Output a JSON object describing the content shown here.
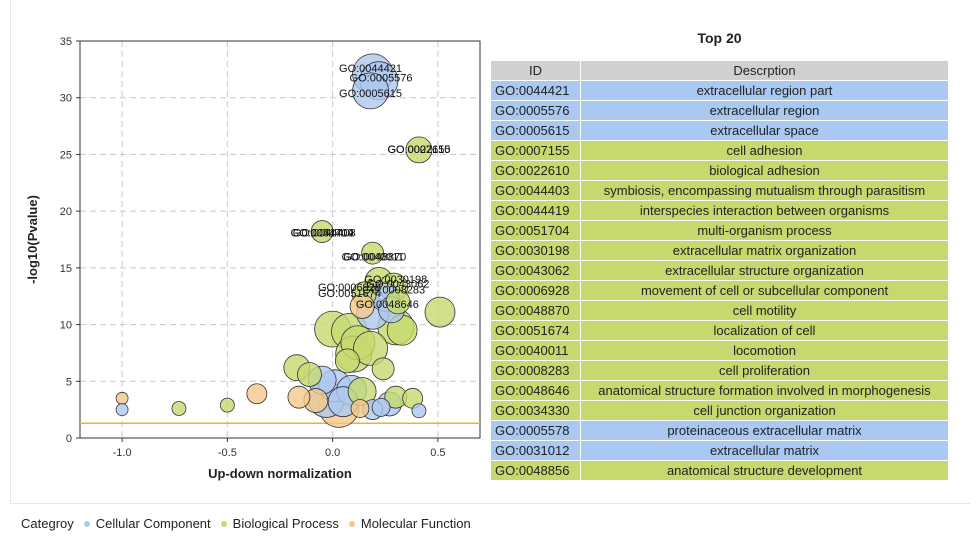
{
  "chart_data": {
    "type": "scatter",
    "xlabel": "Up-down normalization",
    "ylabel": "-log10(Pvalue)",
    "xlim": [
      -1.2,
      0.7
    ],
    "ylim": [
      0,
      35
    ],
    "xticks": [
      -1.0,
      -0.5,
      0.0,
      0.5
    ],
    "xtick_labels": [
      "-1.0",
      "-0.5",
      "0.0",
      "0.5"
    ],
    "yticks": [
      0,
      5,
      10,
      15,
      20,
      25,
      30,
      35
    ],
    "ytick_labels": [
      "0",
      "5",
      "10",
      "15",
      "20",
      "25",
      "30",
      "35"
    ],
    "grid": true,
    "threshold_line_y": 1.3,
    "threshold_color": "#f0b030",
    "category_colors": {
      "Cellular Component": "#aec8ef",
      "Biological Process": "#c6d96e",
      "Molecular Function": "#f3c98a"
    },
    "points": [
      {
        "x": 0.19,
        "y": 32.1,
        "r": 20,
        "cat": "Cellular Component"
      },
      {
        "x": 0.22,
        "y": 31.5,
        "r": 19,
        "cat": "Cellular Component"
      },
      {
        "x": 0.18,
        "y": 30.6,
        "r": 18,
        "cat": "Cellular Component"
      },
      {
        "x": 0.41,
        "y": 25.4,
        "r": 13,
        "cat": "Biological Process"
      },
      {
        "x": -0.05,
        "y": 18.2,
        "r": 11,
        "cat": "Biological Process"
      },
      {
        "x": 0.19,
        "y": 16.3,
        "r": 11,
        "cat": "Biological Process"
      },
      {
        "x": 0.22,
        "y": 13.8,
        "r": 14,
        "cat": "Biological Process"
      },
      {
        "x": 0.29,
        "y": 13.3,
        "r": 14,
        "cat": "Biological Process"
      },
      {
        "x": 0.15,
        "y": 12.7,
        "r": 12,
        "cat": "Biological Process"
      },
      {
        "x": 0.25,
        "y": 12.4,
        "r": 14,
        "cat": "Cellular Component"
      },
      {
        "x": 0.31,
        "y": 12.0,
        "r": 12,
        "cat": "Biological Process"
      },
      {
        "x": 0.14,
        "y": 11.6,
        "r": 12,
        "cat": "Molecular Function"
      },
      {
        "x": 0.28,
        "y": 11.3,
        "r": 13,
        "cat": "Cellular Component"
      },
      {
        "x": 0.19,
        "y": 11.0,
        "r": 16,
        "cat": "Cellular Component"
      },
      {
        "x": 0.51,
        "y": 11.1,
        "r": 15,
        "cat": "Biological Process"
      },
      {
        "x": 0.0,
        "y": 9.6,
        "r": 18,
        "cat": "Biological Process"
      },
      {
        "x": 0.08,
        "y": 9.4,
        "r": 18,
        "cat": "Biological Process"
      },
      {
        "x": 0.3,
        "y": 9.8,
        "r": 18,
        "cat": "Biological Process"
      },
      {
        "x": 0.33,
        "y": 9.5,
        "r": 15,
        "cat": "Biological Process"
      },
      {
        "x": 0.12,
        "y": 8.4,
        "r": 17,
        "cat": "Biological Process"
      },
      {
        "x": 0.18,
        "y": 7.9,
        "r": 17,
        "cat": "Biological Process"
      },
      {
        "x": 0.1,
        "y": 7.4,
        "r": 18,
        "cat": "Biological Process"
      },
      {
        "x": 0.07,
        "y": 6.8,
        "r": 12,
        "cat": "Biological Process"
      },
      {
        "x": 0.24,
        "y": 6.1,
        "r": 11,
        "cat": "Biological Process"
      },
      {
        "x": -0.17,
        "y": 6.2,
        "r": 13,
        "cat": "Biological Process"
      },
      {
        "x": -0.11,
        "y": 5.6,
        "r": 12,
        "cat": "Biological Process"
      },
      {
        "x": -0.05,
        "y": 5.1,
        "r": 14,
        "cat": "Cellular Component"
      },
      {
        "x": 0.01,
        "y": 4.6,
        "r": 16,
        "cat": "Cellular Component"
      },
      {
        "x": 0.09,
        "y": 4.2,
        "r": 15,
        "cat": "Cellular Component"
      },
      {
        "x": 0.14,
        "y": 4.1,
        "r": 14,
        "cat": "Biological Process"
      },
      {
        "x": -0.03,
        "y": 3.4,
        "r": 18,
        "cat": "Cellular Component"
      },
      {
        "x": 0.05,
        "y": 3.2,
        "r": 15,
        "cat": "Cellular Component"
      },
      {
        "x": 0.27,
        "y": 3.0,
        "r": 12,
        "cat": "Cellular Component"
      },
      {
        "x": 0.3,
        "y": 3.6,
        "r": 11,
        "cat": "Biological Process"
      },
      {
        "x": 0.38,
        "y": 3.5,
        "r": 10,
        "cat": "Biological Process"
      },
      {
        "x": -0.16,
        "y": 3.6,
        "r": 11,
        "cat": "Molecular Function"
      },
      {
        "x": -0.08,
        "y": 3.3,
        "r": 12,
        "cat": "Molecular Function"
      },
      {
        "x": -0.36,
        "y": 3.9,
        "r": 10,
        "cat": "Molecular Function"
      },
      {
        "x": 0.03,
        "y": 2.7,
        "r": 20,
        "cat": "Molecular Function"
      },
      {
        "x": 0.13,
        "y": 2.6,
        "r": 9,
        "cat": "Molecular Function"
      },
      {
        "x": 0.19,
        "y": 2.5,
        "r": 10,
        "cat": "Cellular Component"
      },
      {
        "x": 0.23,
        "y": 2.7,
        "r": 9,
        "cat": "Cellular Component"
      },
      {
        "x": -0.5,
        "y": 2.9,
        "r": 7,
        "cat": "Biological Process"
      },
      {
        "x": -0.73,
        "y": 2.6,
        "r": 7,
        "cat": "Biological Process"
      },
      {
        "x": -1.0,
        "y": 3.5,
        "r": 6,
        "cat": "Molecular Function"
      },
      {
        "x": -1.0,
        "y": 2.5,
        "r": 6,
        "cat": "Cellular Component"
      },
      {
        "x": 0.41,
        "y": 2.4,
        "r": 7,
        "cat": "Cellular Component"
      }
    ],
    "labels": [
      {
        "text": "GO:0044421",
        "x": 0.18,
        "y": 32.6,
        "color": "#1f3a6b"
      },
      {
        "text": "GO:0005576",
        "x": 0.23,
        "y": 31.8,
        "color": "#1f3a6b"
      },
      {
        "text": "GO:0005615",
        "x": 0.18,
        "y": 30.4,
        "color": "#111111"
      },
      {
        "text": "GO:0022610",
        "x": 0.41,
        "y": 25.5,
        "color": "#111111"
      },
      {
        "text": "GO:0007155",
        "x": 0.41,
        "y": 25.5,
        "color": "#111111"
      },
      {
        "text": "GO:0051704",
        "x": -0.05,
        "y": 18.1,
        "color": "#111111"
      },
      {
        "text": "GO:0044419",
        "x": -0.05,
        "y": 18.1,
        "color": "#111111"
      },
      {
        "text": "GO:0044403",
        "x": -0.04,
        "y": 18.1,
        "color": "#111111"
      },
      {
        "text": "GO:0040011",
        "x": 0.19,
        "y": 16.0,
        "color": "#111111"
      },
      {
        "text": "GO:0048870",
        "x": 0.2,
        "y": 16.0,
        "color": "#111111"
      },
      {
        "text": "GO:0030198",
        "x": 0.3,
        "y": 14.0,
        "color": "#111111"
      },
      {
        "text": "GO:0043062",
        "x": 0.31,
        "y": 13.6,
        "color": "#111111"
      },
      {
        "text": "GO:0006928",
        "x": 0.08,
        "y": 13.3,
        "color": "#111111"
      },
      {
        "text": "GO:0051674",
        "x": 0.08,
        "y": 12.8,
        "color": "#111111"
      },
      {
        "text": "GO:0008283",
        "x": 0.29,
        "y": 13.1,
        "color": "#111111"
      },
      {
        "text": "GO:0048646",
        "x": 0.26,
        "y": 11.8,
        "color": "#111111"
      }
    ]
  },
  "table": {
    "title": "Top 20",
    "col_id": "ID",
    "col_desc": "Descrption",
    "rows": [
      {
        "id": "GO:0044421",
        "desc": "extracellular region part",
        "cat": "cc"
      },
      {
        "id": "GO:0005576",
        "desc": "extracellular region",
        "cat": "cc"
      },
      {
        "id": "GO:0005615",
        "desc": "extracellular space",
        "cat": "cc"
      },
      {
        "id": "GO:0007155",
        "desc": "cell adhesion",
        "cat": "bp"
      },
      {
        "id": "GO:0022610",
        "desc": "biological adhesion",
        "cat": "bp"
      },
      {
        "id": "GO:0044403",
        "desc": "symbiosis, encompassing mutualism through parasitism",
        "cat": "bp"
      },
      {
        "id": "GO:0044419",
        "desc": "interspecies interaction between organisms",
        "cat": "bp"
      },
      {
        "id": "GO:0051704",
        "desc": "multi-organism process",
        "cat": "bp"
      },
      {
        "id": "GO:0030198",
        "desc": "extracellular matrix organization",
        "cat": "bp"
      },
      {
        "id": "GO:0043062",
        "desc": "extracellular structure organization",
        "cat": "bp"
      },
      {
        "id": "GO:0006928",
        "desc": "movement of cell or subcellular component",
        "cat": "bp"
      },
      {
        "id": "GO:0048870",
        "desc": "cell motility",
        "cat": "bp"
      },
      {
        "id": "GO:0051674",
        "desc": "localization of cell",
        "cat": "bp"
      },
      {
        "id": "GO:0040011",
        "desc": "locomotion",
        "cat": "bp"
      },
      {
        "id": "GO:0008283",
        "desc": "cell proliferation",
        "cat": "bp"
      },
      {
        "id": "GO:0048646",
        "desc": "anatomical structure formation involved in morphogenesis",
        "cat": "bp"
      },
      {
        "id": "GO:0034330",
        "desc": "cell junction organization",
        "cat": "bp"
      },
      {
        "id": "GO:0005578",
        "desc": "proteinaceous extracellular matrix",
        "cat": "cc"
      },
      {
        "id": "GO:0031012",
        "desc": "extracellular matrix",
        "cat": "cc"
      },
      {
        "id": "GO:0048856",
        "desc": "anatomical structure development",
        "cat": "bp"
      }
    ]
  },
  "legend": {
    "title": "Categroy",
    "items": [
      {
        "label": "Cellular Component",
        "color": "#aec8ef"
      },
      {
        "label": "Biological Process",
        "color": "#c6d96e"
      },
      {
        "label": "Molecular Function",
        "color": "#f3c98a"
      }
    ]
  }
}
